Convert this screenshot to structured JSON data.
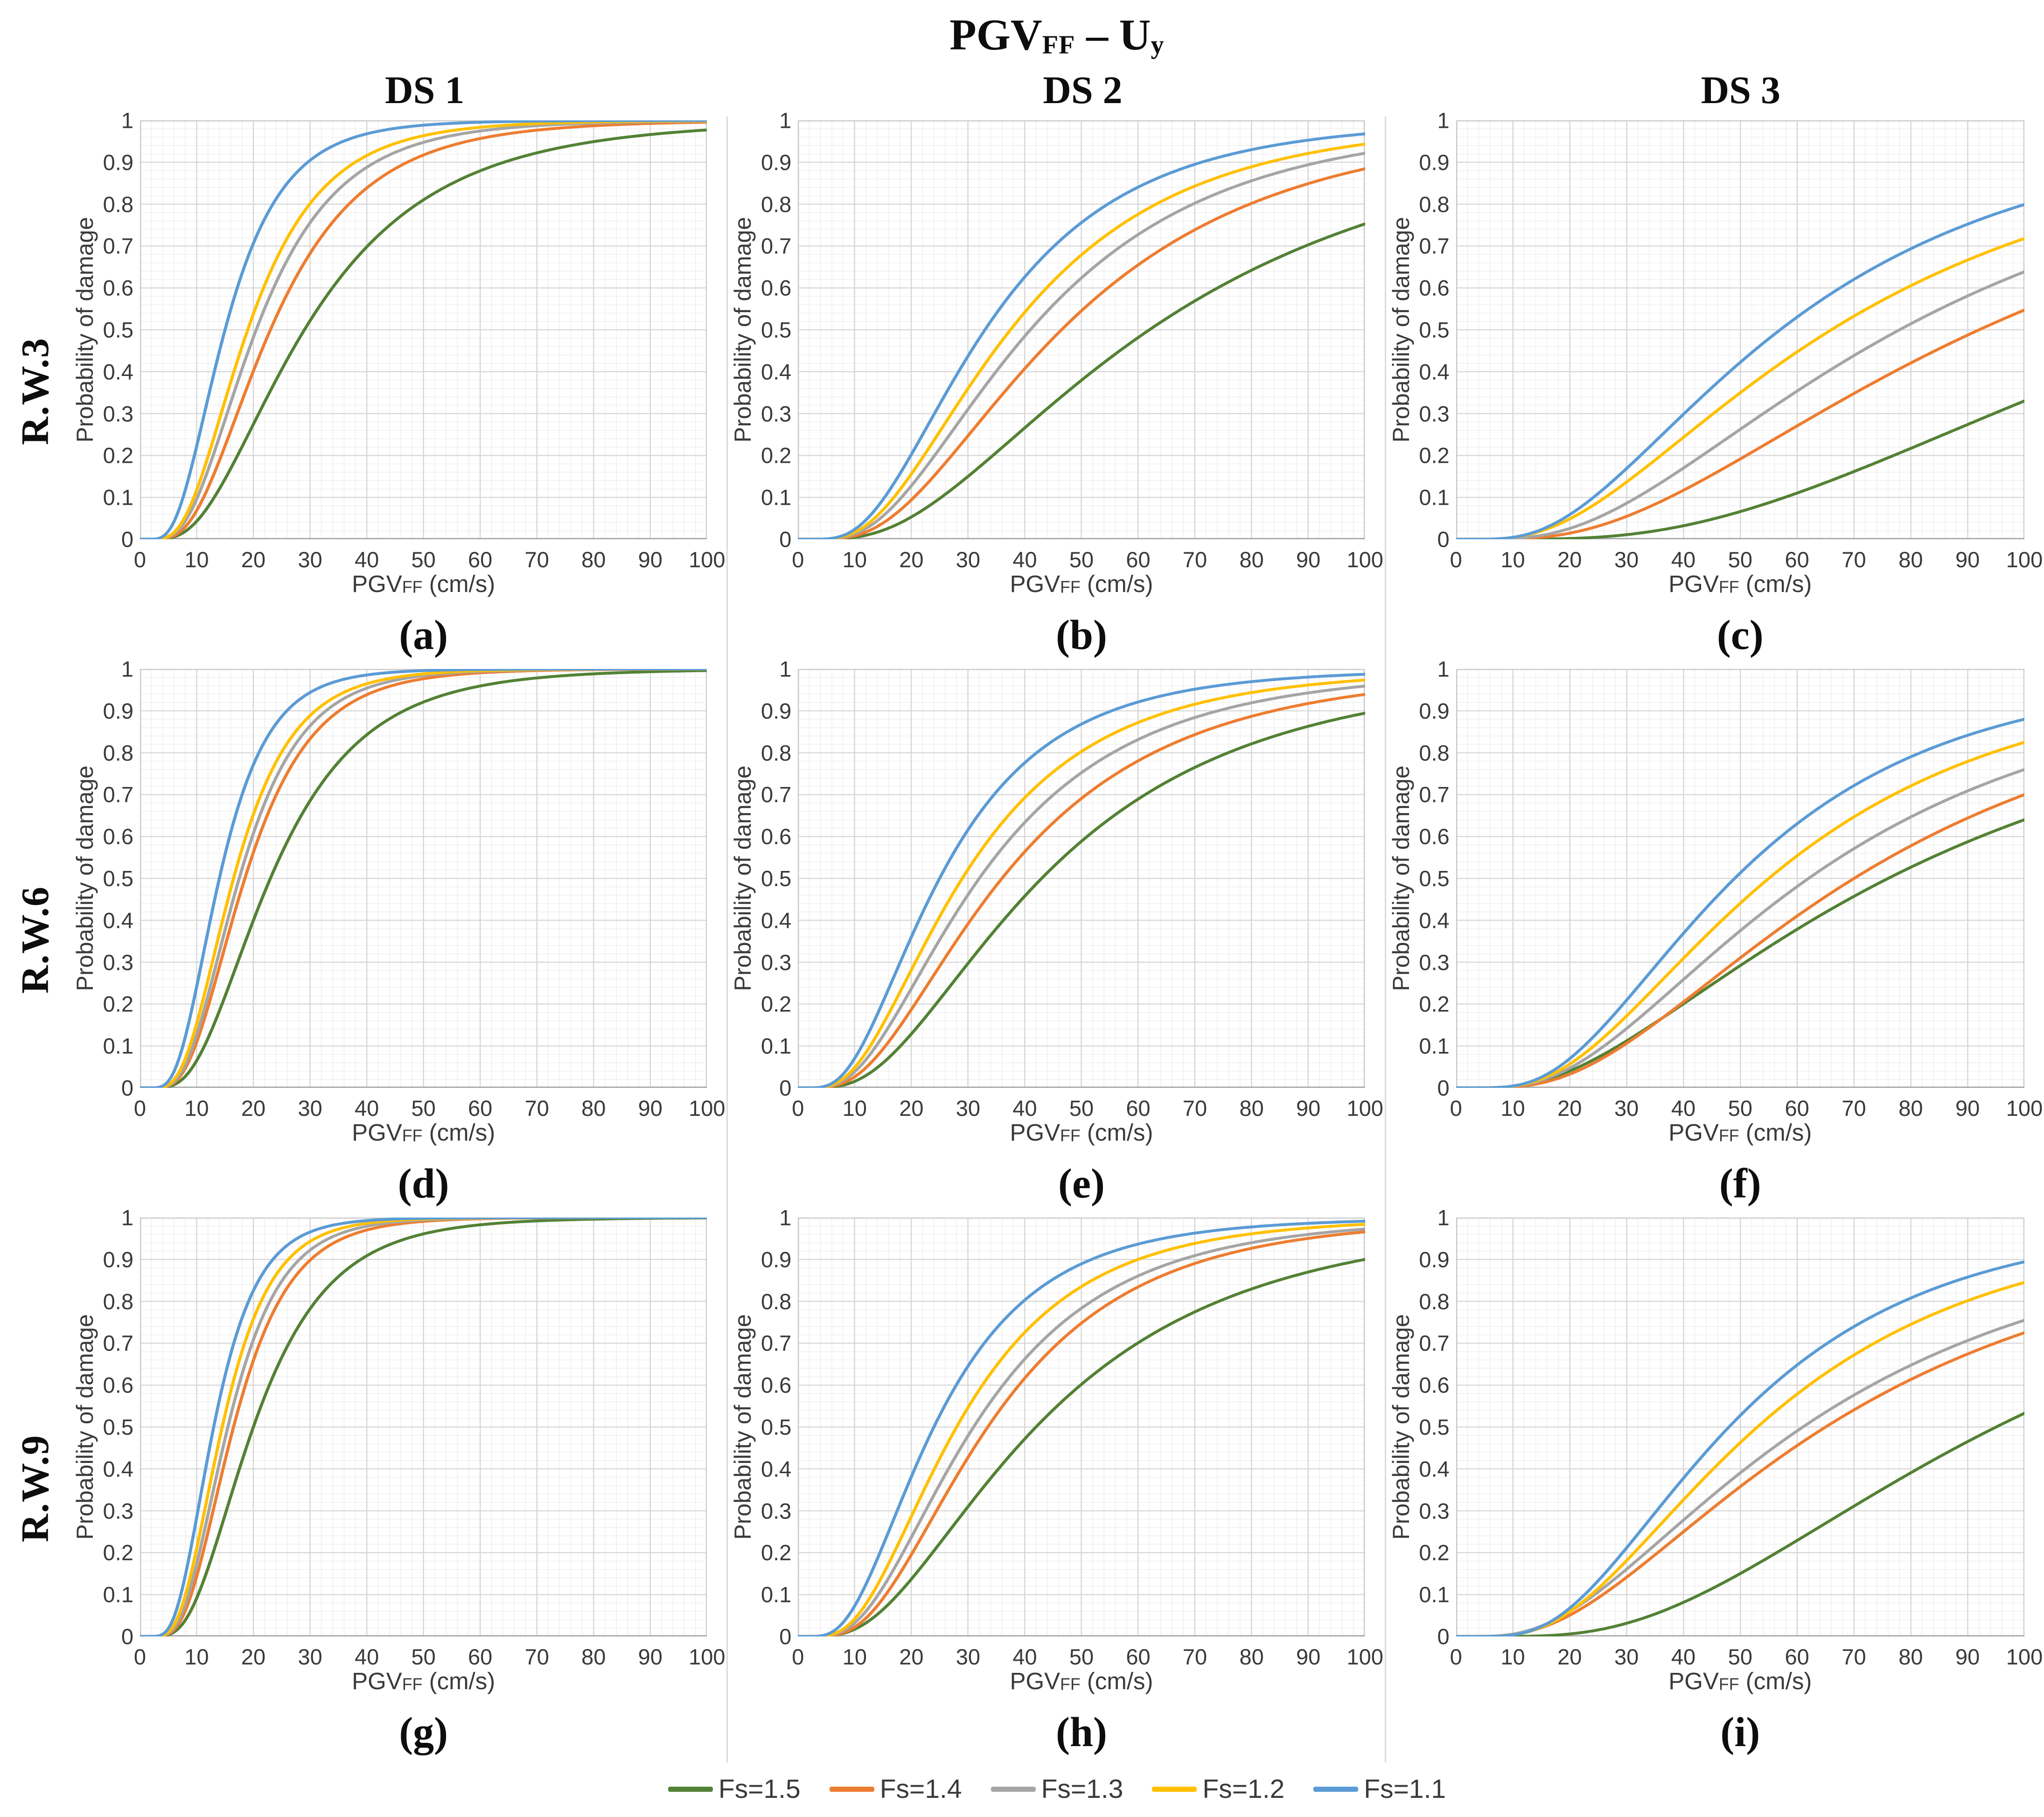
{
  "figure": {
    "title_parts": [
      {
        "t": "PGV"
      },
      {
        "sub": "FF"
      },
      {
        "t": " – U"
      },
      {
        "sub": "y"
      }
    ],
    "column_headers": [
      "DS 1",
      "DS 2",
      "DS 3"
    ],
    "row_labels": [
      "R.W.3",
      "R.W.6",
      "R.W.9"
    ]
  },
  "axes": {
    "ylabel": "Probability of damage",
    "xlabel_parts": [
      {
        "t": "PGV"
      },
      {
        "sub": "FF"
      },
      {
        "t": " (cm/s)"
      }
    ],
    "x_ticks": [
      0,
      10,
      20,
      30,
      40,
      50,
      60,
      70,
      80,
      90,
      100
    ],
    "y_ticks": [
      1,
      0.9,
      0.8,
      0.7,
      0.6,
      0.5,
      0.4,
      0.3,
      0.2,
      0.1,
      0
    ],
    "xlim": [
      0,
      100
    ],
    "ylim": [
      0,
      1
    ],
    "grid": {
      "major_x": 10,
      "minor_x": 2,
      "major_y": 0.1,
      "minor_y": 0.02,
      "grid_on": true
    }
  },
  "legend": {
    "position": "bottom-center",
    "items": [
      {
        "label": "Fs=1.5",
        "color": "#538135"
      },
      {
        "label": "Fs=1.4",
        "color": "#ED7D31"
      },
      {
        "label": "Fs=1.3",
        "color": "#A5A5A5"
      },
      {
        "label": "Fs=1.2",
        "color": "#FFC000"
      },
      {
        "label": "Fs=1.1",
        "color": "#5B9BD5"
      }
    ]
  },
  "chart_data": [
    {
      "panel": "(a)",
      "row": "R.W.3",
      "damage_state": "DS 1",
      "type": "line",
      "model": "lognormal_cdf",
      "series": [
        {
          "name": "Fs=1.5",
          "median_cm_s": 29,
          "beta": 0.62,
          "y_at_100": 0.97
        },
        {
          "name": "Fs=1.4",
          "median_cm_s": 23,
          "beta": 0.56,
          "y_at_100": 0.99
        },
        {
          "name": "Fs=1.3",
          "median_cm_s": 20.5,
          "beta": 0.55,
          "y_at_100": 1.0
        },
        {
          "name": "Fs=1.2",
          "median_cm_s": 19,
          "beta": 0.54,
          "y_at_100": 1.0
        },
        {
          "name": "Fs=1.1",
          "median_cm_s": 15,
          "beta": 0.53,
          "y_at_100": 1.0
        }
      ]
    },
    {
      "panel": "(b)",
      "row": "R.W.3",
      "damage_state": "DS 2",
      "type": "line",
      "model": "lognormal_cdf",
      "series": [
        {
          "name": "Fs=1.5",
          "median_cm_s": 62,
          "beta": 0.7,
          "y_at_100": 0.75
        },
        {
          "name": "Fs=1.4",
          "median_cm_s": 46.5,
          "beta": 0.64,
          "y_at_100": 0.88
        },
        {
          "name": "Fs=1.3",
          "median_cm_s": 41,
          "beta": 0.63,
          "y_at_100": 0.92
        },
        {
          "name": "Fs=1.2",
          "median_cm_s": 37.5,
          "beta": 0.62,
          "y_at_100": 0.94
        },
        {
          "name": "Fs=1.1",
          "median_cm_s": 33,
          "beta": 0.6,
          "y_at_100": 0.97
        }
      ]
    },
    {
      "panel": "(c)",
      "row": "R.W.3",
      "damage_state": "DS 3",
      "type": "line",
      "model": "lognormal_cdf",
      "series": [
        {
          "name": "Fs=1.5",
          "median_cm_s": 133,
          "beta": 0.65,
          "y_at_100": 0.33
        },
        {
          "name": "Fs=1.4",
          "median_cm_s": 92,
          "beta": 0.7,
          "y_at_100": 0.55
        },
        {
          "name": "Fs=1.3",
          "median_cm_s": 78,
          "beta": 0.7,
          "y_at_100": 0.64
        },
        {
          "name": "Fs=1.2",
          "median_cm_s": 66,
          "beta": 0.72,
          "y_at_100": 0.72
        },
        {
          "name": "Fs=1.1",
          "median_cm_s": 57,
          "beta": 0.67,
          "y_at_100": 0.8
        }
      ]
    },
    {
      "panel": "(d)",
      "row": "R.W.6",
      "damage_state": "DS 1",
      "type": "line",
      "model": "lognormal_cdf",
      "series": [
        {
          "name": "Fs=1.5",
          "median_cm_s": 23,
          "beta": 0.55,
          "y_at_100": 1.0
        },
        {
          "name": "Fs=1.4",
          "median_cm_s": 18.5,
          "beta": 0.5,
          "y_at_100": 1.0
        },
        {
          "name": "Fs=1.3",
          "median_cm_s": 17.5,
          "beta": 0.49,
          "y_at_100": 1.0
        },
        {
          "name": "Fs=1.2",
          "median_cm_s": 16.5,
          "beta": 0.49,
          "y_at_100": 1.0
        },
        {
          "name": "Fs=1.1",
          "median_cm_s": 14,
          "beta": 0.48,
          "y_at_100": 1.0
        }
      ]
    },
    {
      "panel": "(e)",
      "row": "R.W.6",
      "damage_state": "DS 2",
      "type": "line",
      "model": "lognormal_cdf",
      "series": [
        {
          "name": "Fs=1.5",
          "median_cm_s": 43,
          "beta": 0.675,
          "y_at_100": 0.9
        },
        {
          "name": "Fs=1.4",
          "median_cm_s": 36,
          "beta": 0.66,
          "y_at_100": 0.94
        },
        {
          "name": "Fs=1.3",
          "median_cm_s": 32,
          "beta": 0.655,
          "y_at_100": 0.96
        },
        {
          "name": "Fs=1.2",
          "median_cm_s": 29,
          "beta": 0.64,
          "y_at_100": 0.97
        },
        {
          "name": "Fs=1.1",
          "median_cm_s": 25,
          "beta": 0.62,
          "y_at_100": 0.99
        }
      ]
    },
    {
      "panel": "(f)",
      "row": "R.W.6",
      "damage_state": "DS 3",
      "type": "line",
      "model": "lognormal_cdf",
      "series": [
        {
          "name": "Fs=1.5",
          "median_cm_s": 76,
          "beta": 0.765,
          "y_at_100": 0.64
        },
        {
          "name": "Fs=1.4",
          "median_cm_s": 70,
          "beta": 0.68,
          "y_at_100": 0.7
        },
        {
          "name": "Fs=1.3",
          "median_cm_s": 62,
          "beta": 0.677,
          "y_at_100": 0.76
        },
        {
          "name": "Fs=1.2",
          "median_cm_s": 55,
          "beta": 0.64,
          "y_at_100": 0.83
        },
        {
          "name": "Fs=1.1",
          "median_cm_s": 49,
          "beta": 0.607,
          "y_at_100": 0.88
        }
      ]
    },
    {
      "panel": "(g)",
      "row": "R.W.9",
      "damage_state": "DS 1",
      "type": "line",
      "model": "lognormal_cdf",
      "series": [
        {
          "name": "Fs=1.5",
          "median_cm_s": 20,
          "beta": 0.52,
          "y_at_100": 1.0
        },
        {
          "name": "Fs=1.4",
          "median_cm_s": 16.5,
          "beta": 0.47,
          "y_at_100": 1.0
        },
        {
          "name": "Fs=1.3",
          "median_cm_s": 15.5,
          "beta": 0.465,
          "y_at_100": 1.0
        },
        {
          "name": "Fs=1.2",
          "median_cm_s": 14.5,
          "beta": 0.46,
          "y_at_100": 1.0
        },
        {
          "name": "Fs=1.1",
          "median_cm_s": 13,
          "beta": 0.46,
          "y_at_100": 1.0
        }
      ]
    },
    {
      "panel": "(h)",
      "row": "R.W.9",
      "damage_state": "DS 2",
      "type": "line",
      "model": "lognormal_cdf",
      "series": [
        {
          "name": "Fs=1.5",
          "median_cm_s": 42,
          "beta": 0.677,
          "y_at_100": 0.9
        },
        {
          "name": "Fs=1.4",
          "median_cm_s": 33.5,
          "beta": 0.6,
          "y_at_100": 0.96
        },
        {
          "name": "Fs=1.3",
          "median_cm_s": 31,
          "beta": 0.61,
          "y_at_100": 0.97
        },
        {
          "name": "Fs=1.2",
          "median_cm_s": 28,
          "beta": 0.595,
          "y_at_100": 0.98
        },
        {
          "name": "Fs=1.1",
          "median_cm_s": 24,
          "beta": 0.6,
          "y_at_100": 0.99
        }
      ]
    },
    {
      "panel": "(i)",
      "row": "R.W.9",
      "damage_state": "DS 3",
      "type": "line",
      "model": "lognormal_cdf",
      "series": [
        {
          "name": "Fs=1.5",
          "median_cm_s": 95,
          "beta": 0.62,
          "y_at_100": 0.53
        },
        {
          "name": "Fs=1.4",
          "median_cm_s": 65,
          "beta": 0.72,
          "y_at_100": 0.73
        },
        {
          "name": "Fs=1.3",
          "median_cm_s": 61,
          "beta": 0.716,
          "y_at_100": 0.76
        },
        {
          "name": "Fs=1.2",
          "median_cm_s": 53,
          "beta": 0.625,
          "y_at_100": 0.85
        },
        {
          "name": "Fs=1.1",
          "median_cm_s": 48,
          "beta": 0.587,
          "y_at_100": 0.9
        }
      ]
    }
  ]
}
